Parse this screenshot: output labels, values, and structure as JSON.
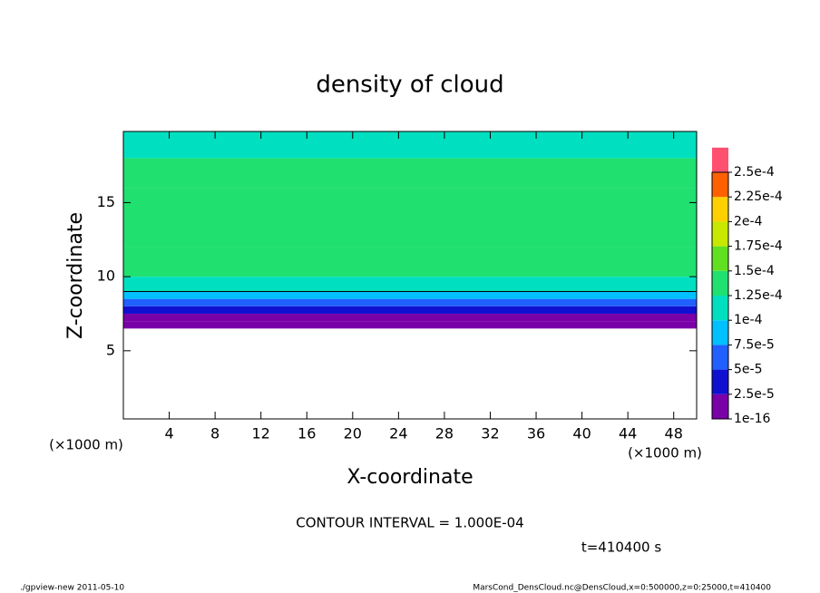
{
  "chart_data": {
    "type": "heatmap",
    "title": "density of cloud",
    "x_label": "X-coordinate",
    "y_label": "Z-coordinate",
    "x_unit_left": "(×1000 m)",
    "x_unit_right": "(×1000 m)",
    "xlim": [
      0,
      50
    ],
    "xticks": [
      4,
      8,
      12,
      16,
      20,
      24,
      28,
      32,
      36,
      40,
      44,
      48
    ],
    "ylim": [
      0.4,
      19.8
    ],
    "yticks": [
      5,
      10,
      15
    ],
    "z_bins": [
      6.5,
      7,
      7.5,
      8,
      8.5,
      9,
      10,
      12,
      16,
      18,
      19.8
    ],
    "values": [
      1e-10,
      2e-05,
      4e-05,
      7e-05,
      9e-05,
      0.00011,
      0.000135,
      0.000145,
      0.000135,
      0.00012
    ],
    "colorbar": {
      "levels": [
        {
          "value": 1e-16,
          "label": "1e-16"
        },
        {
          "value": 2.5e-05,
          "label": "2.5e-5"
        },
        {
          "value": 5e-05,
          "label": "5e-5"
        },
        {
          "value": 7.5e-05,
          "label": "7.5e-5"
        },
        {
          "value": 0.0001,
          "label": "1e-4"
        },
        {
          "value": 0.000125,
          "label": "1.25e-4"
        },
        {
          "value": 0.00015,
          "label": "1.5e-4"
        },
        {
          "value": 0.000175,
          "label": "1.75e-4"
        },
        {
          "value": 0.0002,
          "label": "2e-4"
        },
        {
          "value": 0.000225,
          "label": "2.25e-4"
        },
        {
          "value": 0.00025,
          "label": "2.5e-4"
        }
      ],
      "colors": [
        "#7a00a8",
        "#1010d0",
        "#2060ff",
        "#00c0ff",
        "#00e0c0",
        "#20e070",
        "#60e020",
        "#c8e800",
        "#ffd000",
        "#ff6000",
        "#ff5070"
      ]
    },
    "contour_interval": "CONTOUR INTERVAL = 1.000E-04",
    "time_label": "t=410400 s",
    "footer_left": "./gpview-new  2011-05-10",
    "footer_right": "MarsCond_DensCloud.nc@DensCloud,x=0:500000,z=0:25000,t=410400"
  }
}
